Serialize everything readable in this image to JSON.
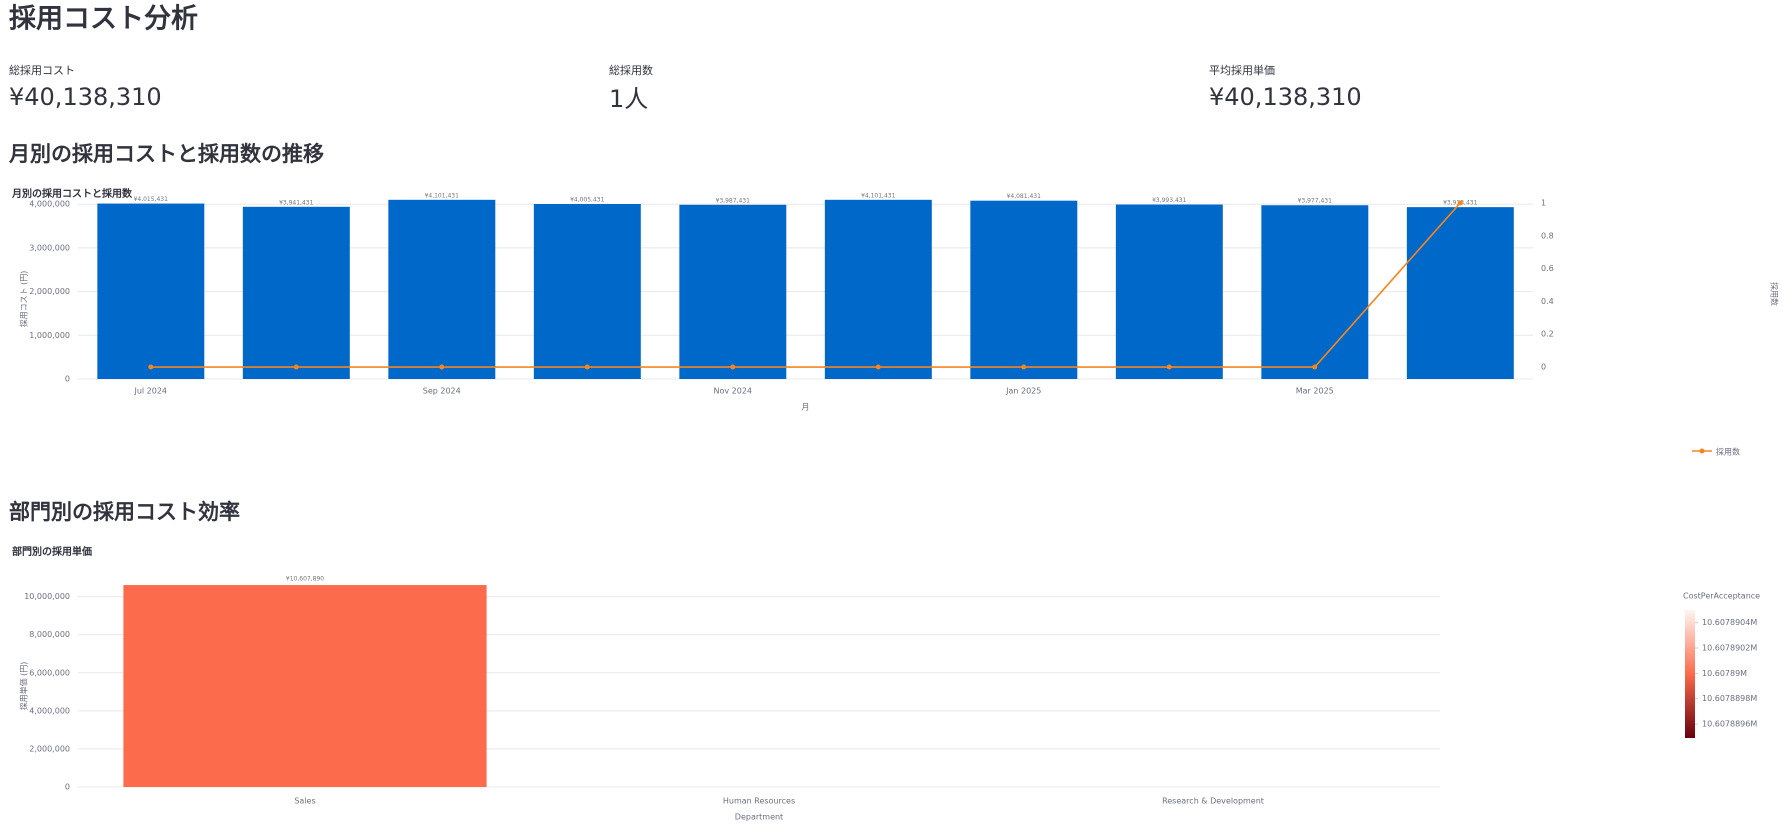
{
  "header": {
    "title": "採用コスト分析"
  },
  "metrics": [
    {
      "label": "総採用コスト",
      "value": "¥40,138,310"
    },
    {
      "label": "総採用数",
      "value": "1人"
    },
    {
      "label": "平均採用単価",
      "value": "¥40,138,310"
    }
  ],
  "sections": [
    "月別の採用コストと採用数の推移",
    "部門別の採用コスト効率"
  ],
  "chart_data": [
    {
      "type": "combo",
      "title": "月別の採用コストと採用数",
      "x_label": "月",
      "y_label": "採用コスト (円)",
      "y2_label": "採用数",
      "categories": [
        "Jul 2024",
        null,
        "Sep 2024",
        null,
        "Nov 2024",
        null,
        "Jan 2025",
        null,
        "Mar 2025",
        null
      ],
      "series": [
        {
          "type": "bar",
          "color": "#0068c9",
          "values": [
            4015431,
            3941431,
            4101431,
            4005431,
            3987431,
            4101431,
            4081431,
            3993431,
            3977431,
            3933431
          ],
          "value_labels": [
            "¥4,015,431",
            "¥3,941,431",
            "¥4,101,431",
            "¥4,005,431",
            "¥3,987,431",
            "¥4,101,431",
            "¥4,081,431",
            "¥3,993,431",
            "¥3,977,431",
            "¥3,933,431"
          ]
        },
        {
          "type": "line",
          "name": "採用数",
          "color": "#f5861f",
          "axis": "y2",
          "values": [
            0,
            0,
            0,
            0,
            0,
            0,
            0,
            0,
            0,
            1
          ]
        }
      ],
      "ylim": [
        0,
        4120000
      ],
      "yticks": [
        0,
        {
          "value": 1000000,
          "label": "1,000,000"
        },
        {
          "value": 2000000,
          "label": "2,000,000"
        },
        {
          "value": 3000000,
          "label": "3,000,000"
        },
        {
          "value": 4000000,
          "label": "4,000,000"
        }
      ],
      "y2lim": [
        -0.073,
        1.024
      ],
      "y2ticks": [
        0,
        0.2,
        0.4,
        0.6,
        0.8,
        1
      ],
      "grid": true,
      "legend": "bottom-right"
    },
    {
      "type": "bar",
      "title": "部門別の採用単価",
      "x_label": "Department",
      "y_label": "採用単価 (円)",
      "categories": [
        "Sales",
        "Human Resources",
        "Research & Development"
      ],
      "values": [
        10607890,
        null,
        null
      ],
      "value_labels": [
        "¥10,607,890",
        null,
        null
      ],
      "color": "#fc6b4b",
      "ylim": [
        0,
        10610000
      ],
      "yticks": [
        0,
        {
          "value": 2000000,
          "label": "2,000,000"
        },
        {
          "value": 4000000,
          "label": "4,000,000"
        },
        {
          "value": 6000000,
          "label": "6,000,000"
        },
        {
          "value": 8000000,
          "label": "8,000,000"
        },
        {
          "value": 10000000,
          "label": "10,000,000"
        }
      ],
      "grid": true,
      "colorbar": {
        "title": "CostPerAcceptance",
        "colorscale": [
          "#67000d",
          "#fb6a4a",
          "#fff5f0"
        ],
        "lim": [
          10607889.49,
          10607890.5
        ],
        "ticks": [
          {
            "value": 10607889.6,
            "label": "10.6078896M"
          },
          {
            "value": 10607889.8,
            "label": "10.6078898M"
          },
          {
            "value": 10607890,
            "label": "10.60789M"
          },
          {
            "value": 10607890.2,
            "label": "10.6078902M"
          },
          {
            "value": 10607890.4,
            "label": "10.6078904M"
          }
        ]
      }
    }
  ]
}
